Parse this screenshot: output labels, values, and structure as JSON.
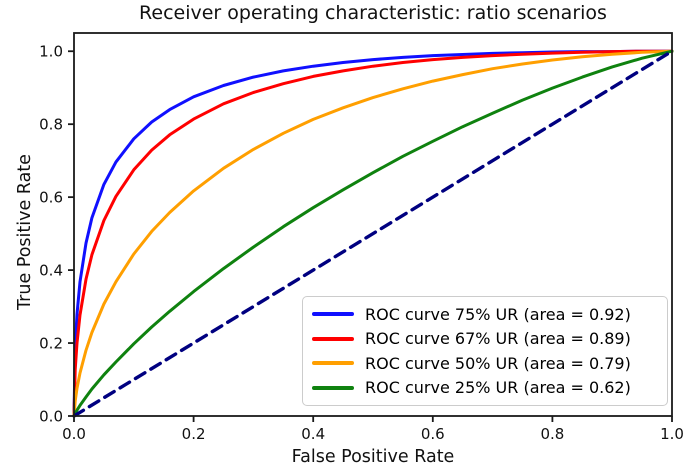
{
  "chart_data": {
    "type": "line",
    "title": "Receiver operating characteristic: ratio scenarios",
    "xlabel": "False Positive Rate",
    "ylabel": "True Positive Rate",
    "xlim": [
      0.0,
      1.0
    ],
    "ylim": [
      0.0,
      1.05
    ],
    "x_ticks": [
      "0.0",
      "0.2",
      "0.4",
      "0.6",
      "0.8",
      "1.0"
    ],
    "y_ticks": [
      "0.0",
      "0.2",
      "0.4",
      "0.6",
      "0.8",
      "1.0"
    ],
    "grid": false,
    "legend_position": "lower right",
    "series": [
      {
        "key": "75ur",
        "name": "ROC curve 75% UR (area = 0.92)",
        "auc": 0.92,
        "color": "#1010ff",
        "style": "solid",
        "in_legend": true,
        "fpr": [
          0,
          0.002,
          0.005,
          0.01,
          0.02,
          0.03,
          0.05,
          0.07,
          0.1,
          0.13,
          0.16,
          0.2,
          0.25,
          0.3,
          0.35,
          0.4,
          0.45,
          0.5,
          0.55,
          0.6,
          0.65,
          0.7,
          0.75,
          0.8,
          0.85,
          0.9,
          0.95,
          1.0
        ],
        "tpr": [
          0,
          0.187,
          0.279,
          0.368,
          0.474,
          0.543,
          0.635,
          0.696,
          0.76,
          0.806,
          0.84,
          0.875,
          0.906,
          0.929,
          0.946,
          0.959,
          0.969,
          0.977,
          0.983,
          0.988,
          0.991,
          0.994,
          0.996,
          0.998,
          0.999,
          0.999,
          1.0,
          1.0
        ]
      },
      {
        "key": "67ur",
        "name": "ROC curve 67% UR (area = 0.89)",
        "auc": 0.89,
        "color": "#ff0000",
        "style": "solid",
        "in_legend": true,
        "fpr": [
          0,
          0.002,
          0.005,
          0.01,
          0.02,
          0.03,
          0.05,
          0.07,
          0.1,
          0.13,
          0.16,
          0.2,
          0.25,
          0.3,
          0.35,
          0.4,
          0.45,
          0.5,
          0.55,
          0.6,
          0.65,
          0.7,
          0.75,
          0.8,
          0.85,
          0.9,
          0.95,
          1.0
        ],
        "tpr": [
          0,
          0.127,
          0.2,
          0.277,
          0.375,
          0.442,
          0.536,
          0.602,
          0.675,
          0.729,
          0.771,
          0.814,
          0.856,
          0.887,
          0.911,
          0.931,
          0.946,
          0.959,
          0.969,
          0.977,
          0.983,
          0.988,
          0.992,
          0.995,
          0.997,
          0.999,
          1.0,
          1.0
        ]
      },
      {
        "key": "50ur",
        "name": "ROC curve 50% UR (area = 0.79)",
        "auc": 0.79,
        "color": "#ff9f00",
        "style": "solid",
        "in_legend": true,
        "fpr": [
          0,
          0.002,
          0.005,
          0.01,
          0.02,
          0.03,
          0.05,
          0.07,
          0.1,
          0.13,
          0.16,
          0.2,
          0.25,
          0.3,
          0.35,
          0.4,
          0.45,
          0.5,
          0.55,
          0.6,
          0.65,
          0.7,
          0.75,
          0.8,
          0.85,
          0.9,
          0.95,
          1.0
        ],
        "tpr": [
          0,
          0.041,
          0.076,
          0.118,
          0.18,
          0.229,
          0.307,
          0.368,
          0.444,
          0.506,
          0.558,
          0.617,
          0.679,
          0.731,
          0.775,
          0.813,
          0.845,
          0.873,
          0.897,
          0.918,
          0.936,
          0.952,
          0.965,
          0.976,
          0.985,
          0.992,
          0.997,
          1.0
        ]
      },
      {
        "key": "25ur",
        "name": "ROC curve 25% UR (area = 0.62)",
        "auc": 0.62,
        "color": "#0f820f",
        "style": "solid",
        "in_legend": true,
        "fpr": [
          0,
          0.002,
          0.005,
          0.01,
          0.02,
          0.03,
          0.05,
          0.07,
          0.1,
          0.13,
          0.16,
          0.2,
          0.25,
          0.3,
          0.35,
          0.4,
          0.45,
          0.5,
          0.55,
          0.6,
          0.65,
          0.7,
          0.75,
          0.8,
          0.85,
          0.9,
          0.95,
          1.0
        ],
        "tpr": [
          0,
          0.007,
          0.016,
          0.029,
          0.052,
          0.074,
          0.113,
          0.148,
          0.198,
          0.244,
          0.287,
          0.341,
          0.404,
          0.463,
          0.519,
          0.571,
          0.62,
          0.667,
          0.712,
          0.753,
          0.793,
          0.83,
          0.866,
          0.899,
          0.929,
          0.957,
          0.981,
          1.0
        ]
      },
      {
        "key": "chance",
        "name": "chance-diagonal",
        "color": "#000080",
        "style": "dashed",
        "in_legend": false,
        "fpr": [
          0,
          1.0
        ],
        "tpr": [
          0,
          1.0
        ]
      }
    ],
    "spine_color": "#1a1a1a",
    "tick_label_color": "#111111"
  }
}
